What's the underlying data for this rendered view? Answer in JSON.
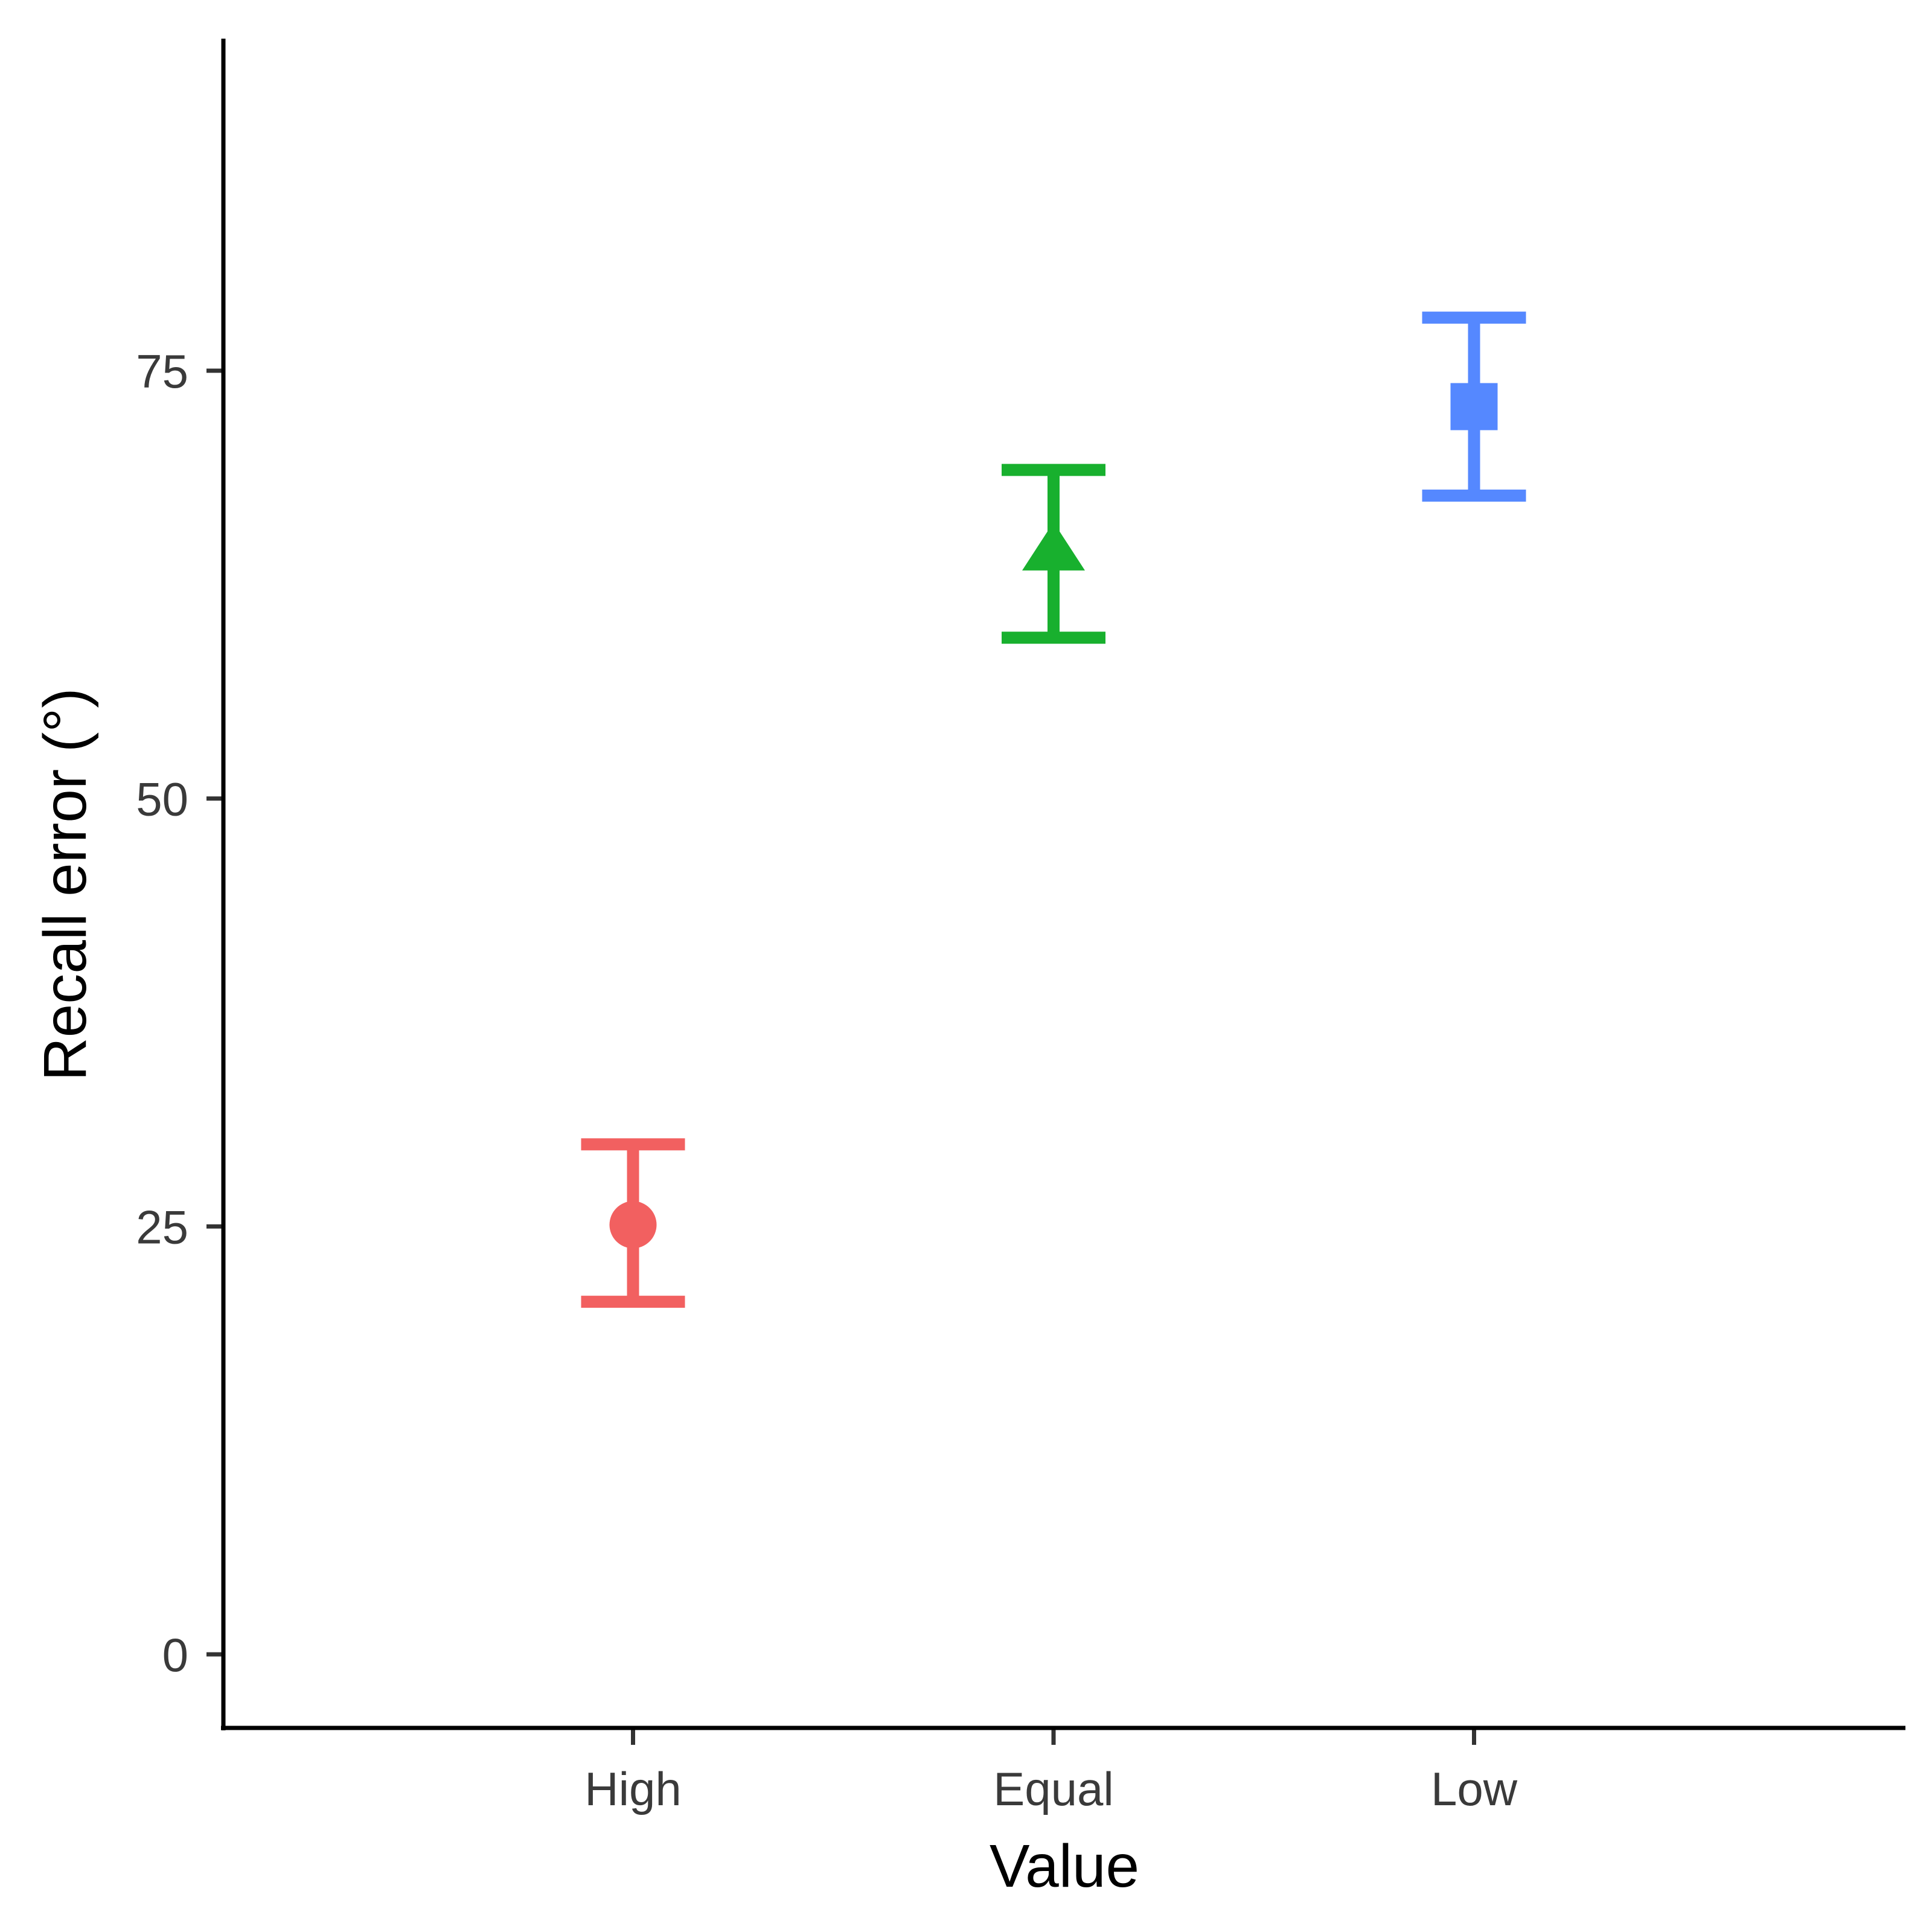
{
  "chart_data": {
    "type": "scatter",
    "xlabel": "Value",
    "ylabel": "Recall error (°)",
    "categories": [
      "High",
      "Equal",
      "Low"
    ],
    "yticks": [
      0,
      25,
      50,
      75
    ],
    "ylim": [
      -4.3,
      94.4
    ],
    "series": [
      {
        "category": "High",
        "value": 25.1,
        "lower": 20.6,
        "upper": 29.8,
        "color": "#F26060",
        "shape": "circle"
      },
      {
        "category": "Equal",
        "value": 64.4,
        "lower": 59.4,
        "upper": 69.2,
        "color": "#18B02E",
        "shape": "triangle"
      },
      {
        "category": "Low",
        "value": 72.9,
        "lower": 67.7,
        "upper": 78.1,
        "color": "#5588FF",
        "shape": "square"
      }
    ],
    "legend": "none",
    "grid": false
  }
}
